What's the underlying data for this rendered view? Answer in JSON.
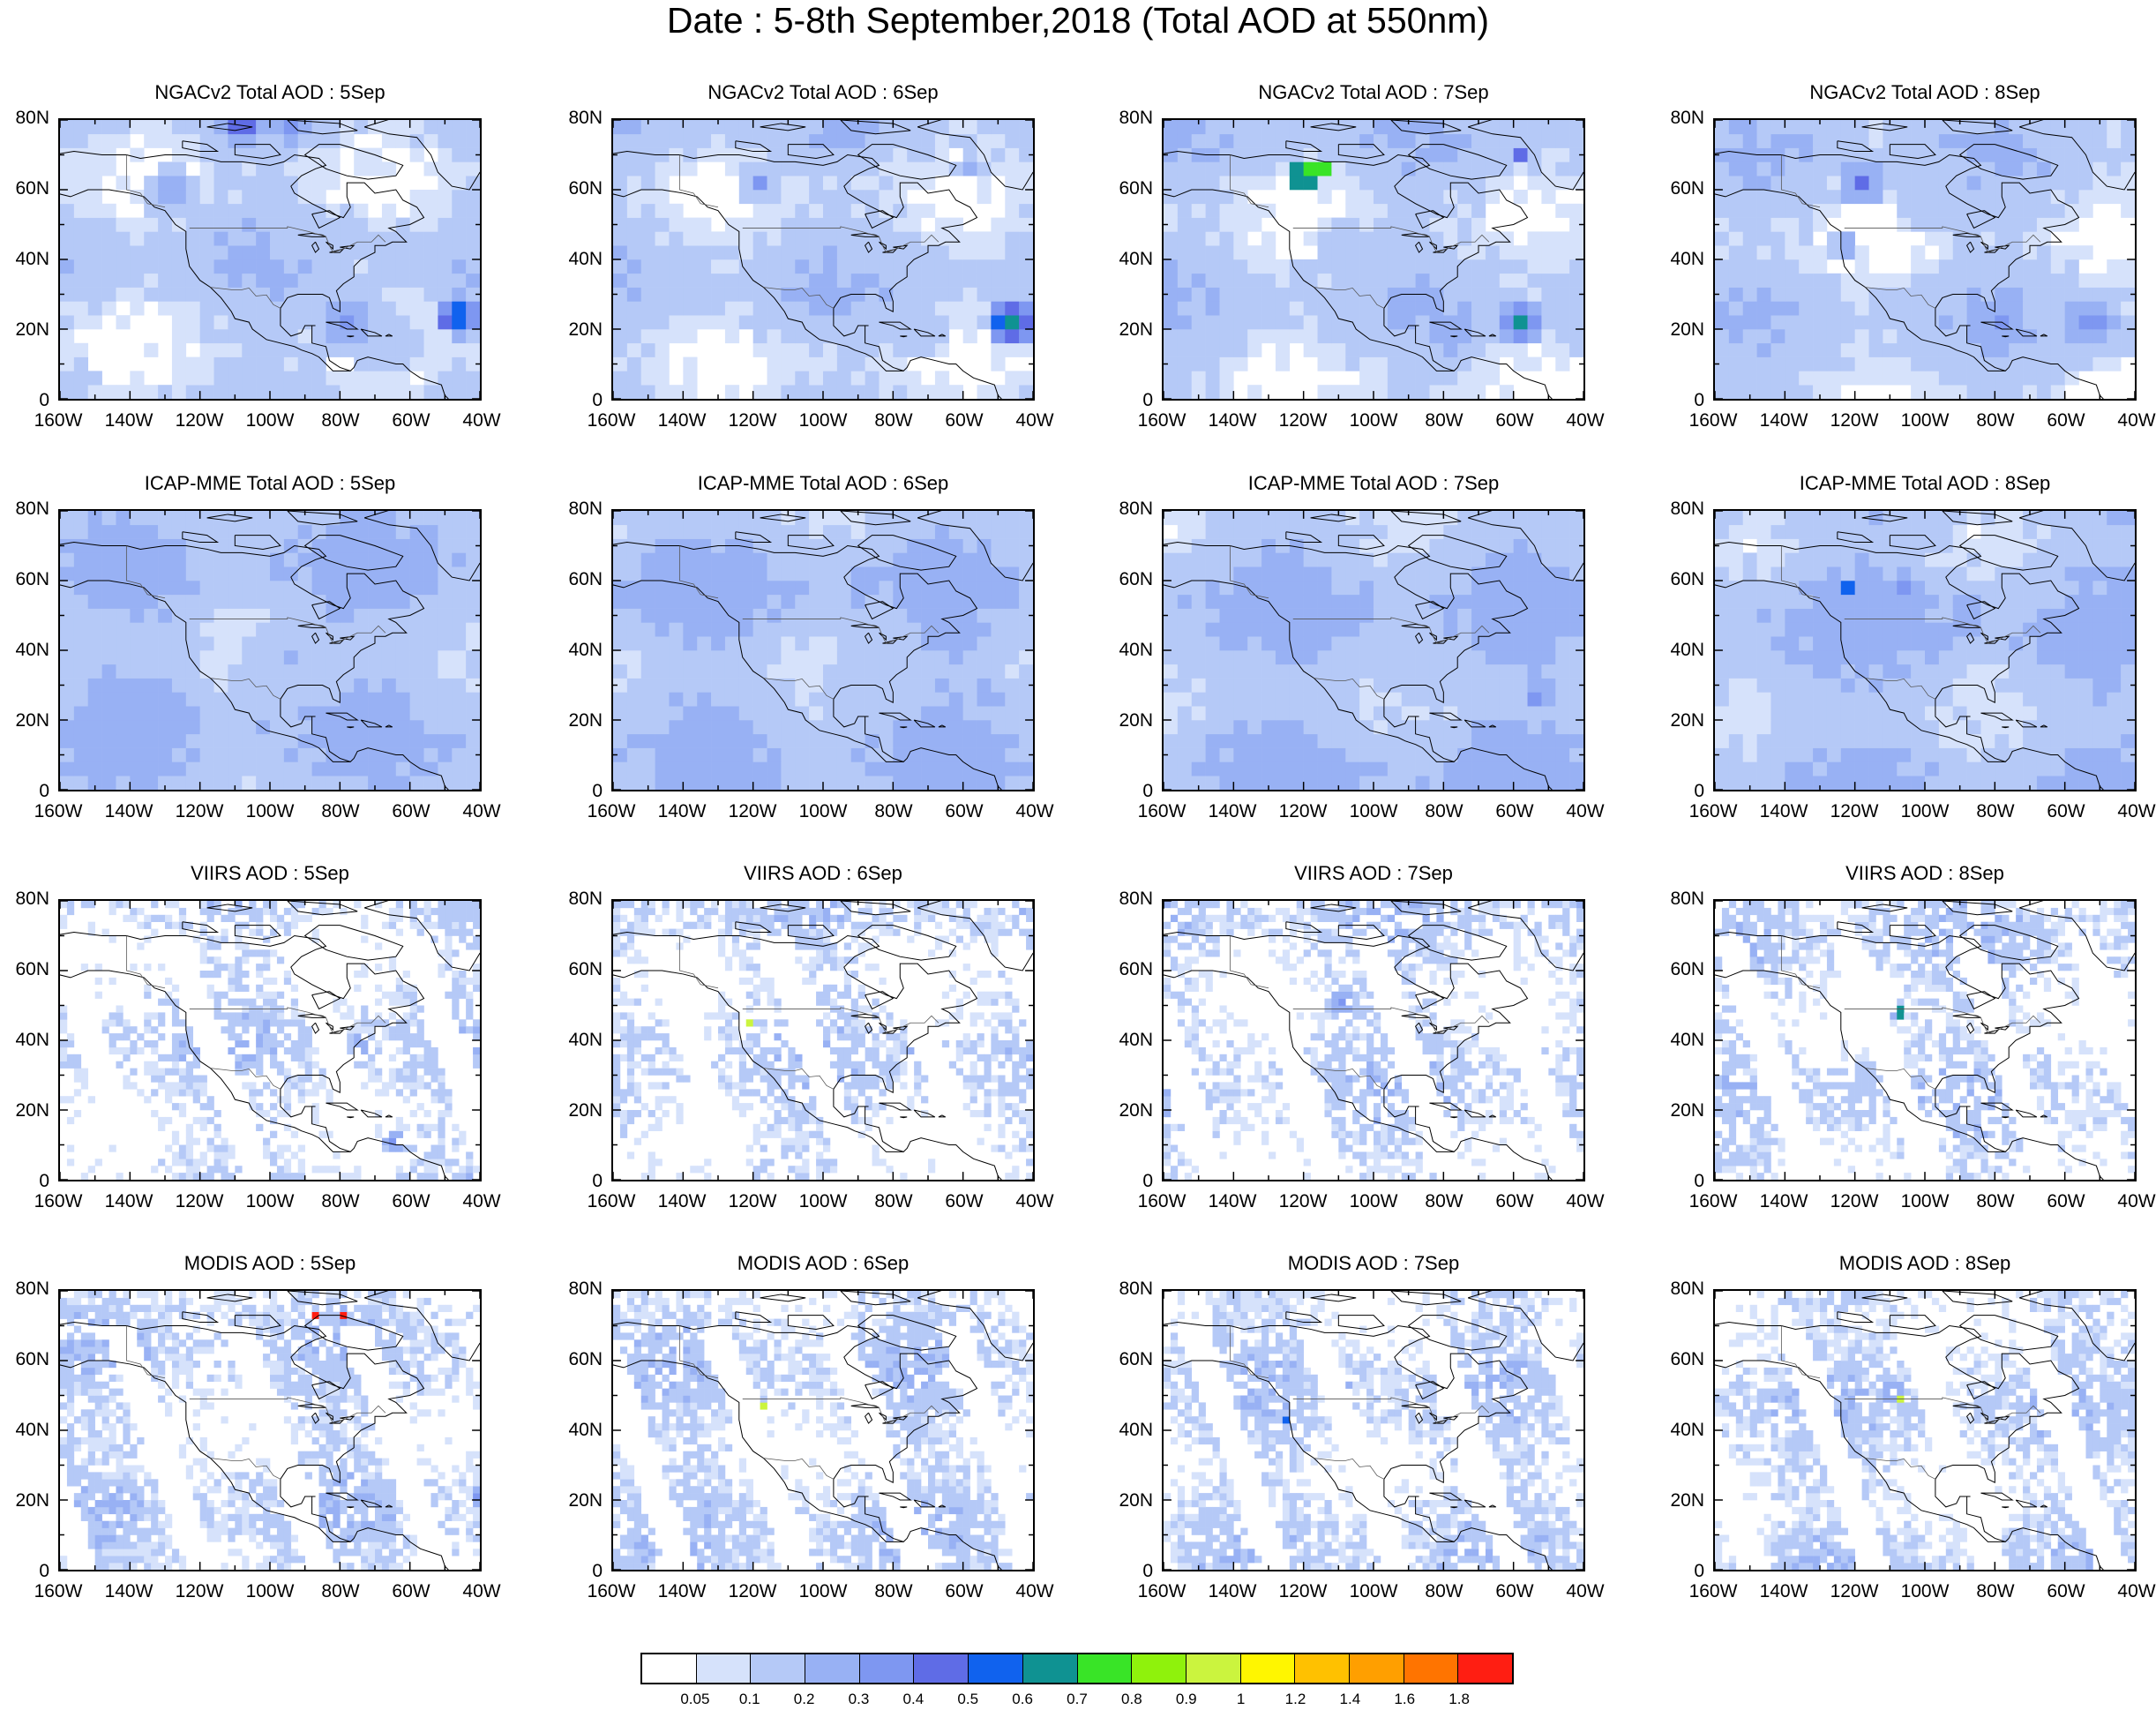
{
  "title": "Date : 5-8th September,2018 (Total AOD at 550nm)",
  "panels": [
    {
      "title": "NGACv2 Total AOD : 5Sep",
      "product": "NGACv2",
      "day": "5Sep"
    },
    {
      "title": "NGACv2 Total AOD : 6Sep",
      "product": "NGACv2",
      "day": "6Sep"
    },
    {
      "title": "NGACv2 Total AOD : 7Sep",
      "product": "NGACv2",
      "day": "7Sep"
    },
    {
      "title": "NGACv2 Total AOD : 8Sep",
      "product": "NGACv2",
      "day": "8Sep"
    },
    {
      "title": "ICAP-MME Total AOD : 5Sep",
      "product": "ICAP-MME",
      "day": "5Sep"
    },
    {
      "title": "ICAP-MME Total AOD : 6Sep",
      "product": "ICAP-MME",
      "day": "6Sep"
    },
    {
      "title": "ICAP-MME Total AOD : 7Sep",
      "product": "ICAP-MME",
      "day": "7Sep"
    },
    {
      "title": "ICAP-MME Total AOD : 8Sep",
      "product": "ICAP-MME",
      "day": "8Sep"
    },
    {
      "title": "VIIRS AOD : 5Sep",
      "product": "VIIRS",
      "day": "5Sep"
    },
    {
      "title": "VIIRS AOD : 6Sep",
      "product": "VIIRS",
      "day": "6Sep"
    },
    {
      "title": "VIIRS AOD : 7Sep",
      "product": "VIIRS",
      "day": "7Sep"
    },
    {
      "title": "VIIRS AOD : 8Sep",
      "product": "VIIRS",
      "day": "8Sep"
    },
    {
      "title": "MODIS AOD : 5Sep",
      "product": "MODIS",
      "day": "5Sep"
    },
    {
      "title": "MODIS AOD : 6Sep",
      "product": "MODIS",
      "day": "6Sep"
    },
    {
      "title": "MODIS AOD : 7Sep",
      "product": "MODIS",
      "day": "7Sep"
    },
    {
      "title": "MODIS AOD : 8Sep",
      "product": "MODIS",
      "day": "8Sep"
    }
  ],
  "axes": {
    "x_ticks": [
      "160W",
      "140W",
      "120W",
      "100W",
      "80W",
      "60W",
      "40W"
    ],
    "y_ticks": [
      "80N",
      "60N",
      "40N",
      "20N",
      "0"
    ],
    "lon_range": [
      -160,
      -40
    ],
    "lat_range": [
      0,
      80
    ]
  },
  "colorbar": {
    "labels": [
      "0.05",
      "0.1",
      "0.2",
      "0.3",
      "0.4",
      "0.5",
      "0.6",
      "0.7",
      "0.8",
      "0.9",
      "1",
      "1.2",
      "1.4",
      "1.6",
      "1.8"
    ],
    "colors": [
      "#ffffff",
      "#d6e2fb",
      "#b5c9f7",
      "#98b1f4",
      "#7e97f1",
      "#5f6ce6",
      "#1062ee",
      "#0f9292",
      "#39e427",
      "#8ff20c",
      "#cbf43e",
      "#fff600",
      "#ffc100",
      "#ff9f00",
      "#ff7400",
      "#ff1e12"
    ]
  },
  "hotspots": {
    "ngac_7sep": "#ffc100",
    "modis_5sep": "#ff1e12"
  }
}
